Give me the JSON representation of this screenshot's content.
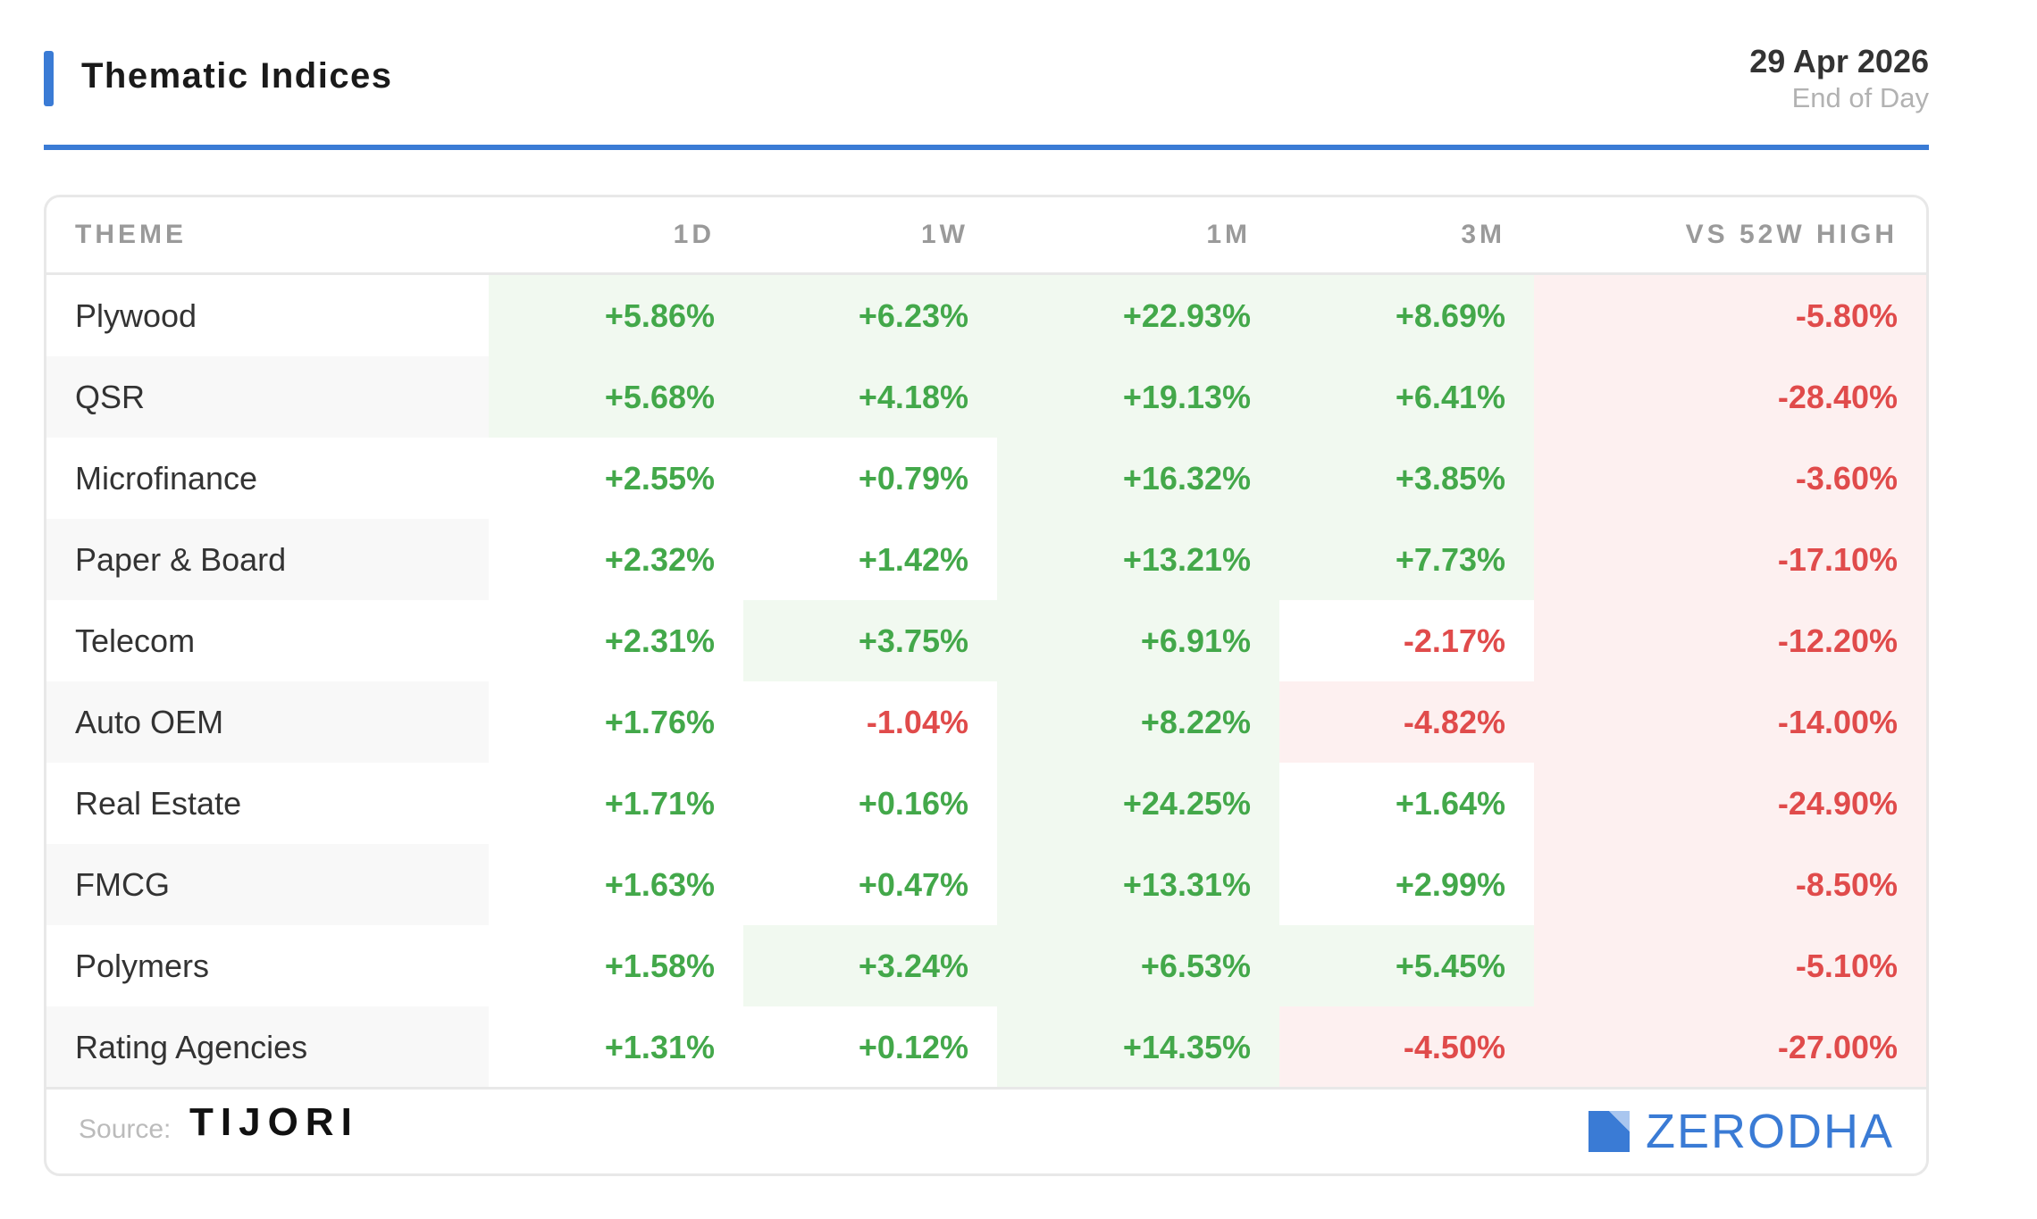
{
  "header": {
    "title": "Thematic Indices",
    "date": "29 Apr 2026",
    "subtitle": "End of Day"
  },
  "colors": {
    "accent": "#3a7bd5",
    "positive": "#43a84a",
    "negative": "#e04b4b",
    "positive_bg": "#f1f9f0",
    "negative_bg": "#fdf0f0"
  },
  "chart_data": {
    "type": "table",
    "columns": [
      "THEME",
      "1D",
      "1W",
      "1M",
      "3M",
      "VS 52W HIGH"
    ],
    "rows": [
      {
        "theme": "Plywood",
        "values": [
          "+5.86%",
          "+6.23%",
          "+22.93%",
          "+8.69%",
          "-5.80%"
        ],
        "shade": [
          "g",
          "g",
          "g",
          "g",
          "r"
        ]
      },
      {
        "theme": "QSR",
        "values": [
          "+5.68%",
          "+4.18%",
          "+19.13%",
          "+6.41%",
          "-28.40%"
        ],
        "shade": [
          "g",
          "g",
          "g",
          "g",
          "r"
        ]
      },
      {
        "theme": "Microfinance",
        "values": [
          "+2.55%",
          "+0.79%",
          "+16.32%",
          "+3.85%",
          "-3.60%"
        ],
        "shade": [
          "",
          "",
          "g",
          "g",
          "r"
        ]
      },
      {
        "theme": "Paper & Board",
        "values": [
          "+2.32%",
          "+1.42%",
          "+13.21%",
          "+7.73%",
          "-17.10%"
        ],
        "shade": [
          "",
          "",
          "g",
          "g",
          "r"
        ]
      },
      {
        "theme": "Telecom",
        "values": [
          "+2.31%",
          "+3.75%",
          "+6.91%",
          "-2.17%",
          "-12.20%"
        ],
        "shade": [
          "",
          "g",
          "g",
          "",
          "r"
        ]
      },
      {
        "theme": "Auto OEM",
        "values": [
          "+1.76%",
          "-1.04%",
          "+8.22%",
          "-4.82%",
          "-14.00%"
        ],
        "shade": [
          "",
          "",
          "g",
          "r",
          "r"
        ]
      },
      {
        "theme": "Real Estate",
        "values": [
          "+1.71%",
          "+0.16%",
          "+24.25%",
          "+1.64%",
          "-24.90%"
        ],
        "shade": [
          "",
          "",
          "g",
          "",
          "r"
        ]
      },
      {
        "theme": "FMCG",
        "values": [
          "+1.63%",
          "+0.47%",
          "+13.31%",
          "+2.99%",
          "-8.50%"
        ],
        "shade": [
          "",
          "",
          "g",
          "",
          "r"
        ]
      },
      {
        "theme": "Polymers",
        "values": [
          "+1.58%",
          "+3.24%",
          "+6.53%",
          "+5.45%",
          "-5.10%"
        ],
        "shade": [
          "",
          "g",
          "g",
          "g",
          "r"
        ]
      },
      {
        "theme": "Rating Agencies",
        "values": [
          "+1.31%",
          "+0.12%",
          "+14.35%",
          "-4.50%",
          "-27.00%"
        ],
        "shade": [
          "",
          "",
          "g",
          "r",
          "r"
        ]
      }
    ]
  },
  "footer": {
    "source_label": "Source:",
    "source_name": "TIJORI",
    "brand": "ZERODHA",
    "brand_icon": "zerodha-logo-icon"
  }
}
